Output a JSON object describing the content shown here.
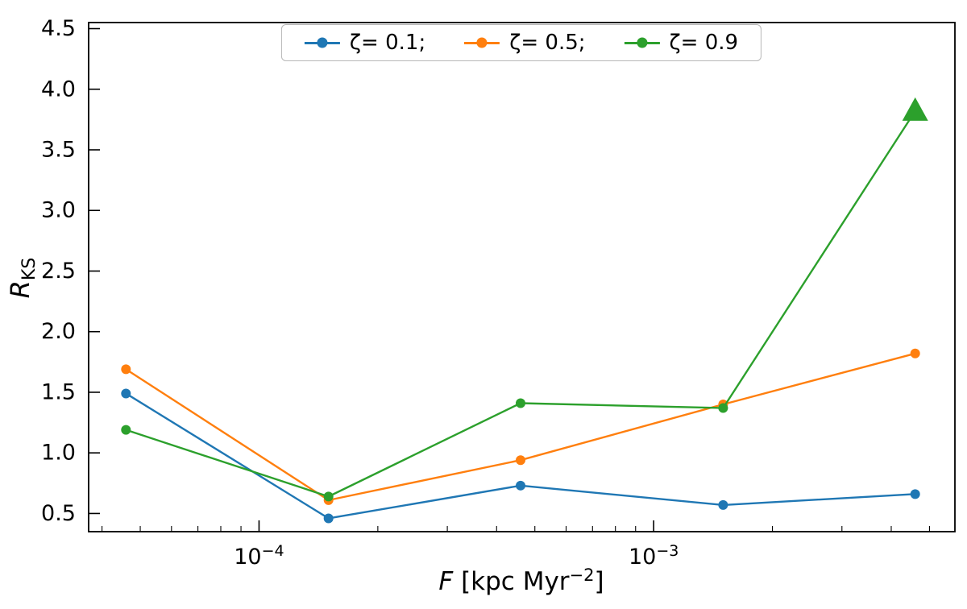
{
  "figure": {
    "background": "#ffffff",
    "ylabel": {
      "main": "R",
      "sub": "KS"
    },
    "xlabel": {
      "italic": "F",
      "mid": " [kpc Myr",
      "sup": "−2",
      "end": "]"
    }
  },
  "chart_data": {
    "type": "line",
    "x_scale": "log",
    "title": "",
    "xlabel": "F [kpc Myr^-2]",
    "ylabel": "R_KS",
    "xlim": [
      3.7e-05,
      0.0058
    ],
    "ylim": [
      0.35,
      4.55
    ],
    "x": [
      4.6e-05,
      0.00015,
      0.00046,
      0.0015,
      0.0046
    ],
    "series": [
      {
        "name": "ζ= 0.1;",
        "color": "#1f77b4",
        "marker": "circle",
        "values": [
          1.49,
          0.46,
          0.73,
          0.57,
          0.66
        ]
      },
      {
        "name": "ζ= 0.5;",
        "color": "#ff7f0e",
        "marker": "circle",
        "values": [
          1.69,
          0.61,
          0.94,
          1.4,
          1.82
        ]
      },
      {
        "name": "ζ= 0.9",
        "color": "#2ca02c",
        "marker": "circle",
        "last_marker": "triangle-up-large",
        "values": [
          1.19,
          0.64,
          1.41,
          1.37,
          3.82
        ]
      }
    ],
    "y_ticks": [
      "0.5",
      "1.0",
      "1.5",
      "2.0",
      "2.5",
      "3.0",
      "3.5",
      "4.0",
      "4.5"
    ],
    "x_major_ticks": [
      {
        "value": 0.0001,
        "base": "10",
        "exp": "−4"
      },
      {
        "value": 0.001,
        "base": "10",
        "exp": "−3"
      }
    ],
    "legend_position": "top-center",
    "grid": false
  }
}
